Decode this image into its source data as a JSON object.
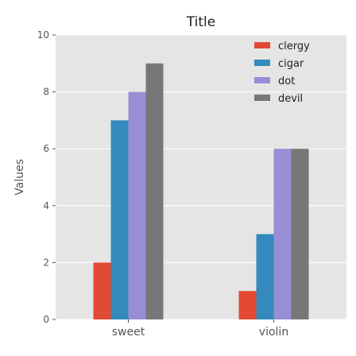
{
  "chart_data": {
    "type": "bar",
    "title": "Title",
    "xlabel": "",
    "ylabel": "Values",
    "categories": [
      "sweet",
      "violin"
    ],
    "series": [
      {
        "name": "clergy",
        "color": "#e24a33",
        "values": [
          2,
          1
        ]
      },
      {
        "name": "cigar",
        "color": "#348abd",
        "values": [
          7,
          3
        ]
      },
      {
        "name": "dot",
        "color": "#988ed5",
        "values": [
          8,
          6
        ]
      },
      {
        "name": "devil",
        "color": "#777777",
        "values": [
          9,
          6
        ]
      }
    ],
    "ylim": [
      0,
      10
    ],
    "yticks": [
      0,
      2,
      4,
      6,
      8,
      10
    ],
    "grid": true,
    "legend_position": "top-right",
    "background": "#e5e5e5"
  }
}
